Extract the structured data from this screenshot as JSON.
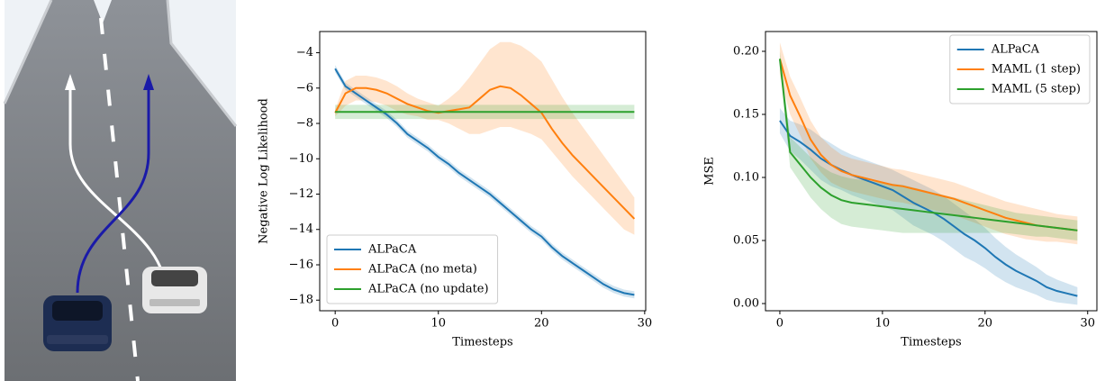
{
  "chart_data": [
    {
      "type": "line",
      "ylabel": "Negative Log Likelihood",
      "xlabel": "Timesteps",
      "x": [
        0,
        1,
        2,
        3,
        4,
        5,
        6,
        7,
        8,
        9,
        10,
        11,
        12,
        13,
        14,
        15,
        16,
        17,
        18,
        19,
        20,
        21,
        22,
        23,
        24,
        25,
        26,
        27,
        28,
        29
      ],
      "xlim": [
        -1.5,
        30.1
      ],
      "xticks": [
        0,
        10,
        20,
        30
      ],
      "ylim": [
        -18.6,
        -2.8
      ],
      "yticks": [
        {
          "value": -18,
          "label": "−18"
        },
        {
          "value": -16,
          "label": "−16"
        },
        {
          "value": -14,
          "label": "−14"
        },
        {
          "value": -12,
          "label": "−12"
        },
        {
          "value": -10,
          "label": "−10"
        },
        {
          "value": -8,
          "label": "−8"
        },
        {
          "value": -6,
          "label": "−6"
        },
        {
          "value": -4,
          "label": "−4"
        }
      ],
      "legend": "lower left",
      "series": [
        {
          "name": "ALPaCA",
          "color": "#1f77b4",
          "values": [
            -4.9,
            -5.9,
            -6.3,
            -6.7,
            -7.1,
            -7.5,
            -8.0,
            -8.6,
            -9.0,
            -9.4,
            -9.9,
            -10.3,
            -10.8,
            -11.2,
            -11.6,
            -12.0,
            -12.5,
            -13.0,
            -13.5,
            -14.0,
            -14.4,
            -15.0,
            -15.5,
            -15.9,
            -16.3,
            -16.7,
            -17.1,
            -17.4,
            -17.6,
            -17.7
          ],
          "upper": [
            -4.7,
            -5.7,
            -6.1,
            -6.5,
            -6.9,
            -7.3,
            -7.8,
            -8.4,
            -8.8,
            -9.2,
            -9.7,
            -10.1,
            -10.6,
            -11.0,
            -11.4,
            -11.8,
            -12.3,
            -12.8,
            -13.3,
            -13.8,
            -14.2,
            -14.8,
            -15.3,
            -15.7,
            -16.1,
            -16.5,
            -16.9,
            -17.2,
            -17.4,
            -17.5
          ],
          "lower": [
            -5.1,
            -6.1,
            -6.5,
            -6.9,
            -7.3,
            -7.7,
            -8.2,
            -8.8,
            -9.2,
            -9.6,
            -10.1,
            -10.5,
            -11.0,
            -11.4,
            -11.8,
            -12.2,
            -12.7,
            -13.2,
            -13.7,
            -14.2,
            -14.6,
            -15.2,
            -15.7,
            -16.1,
            -16.5,
            -16.9,
            -17.3,
            -17.6,
            -17.8,
            -17.9
          ]
        },
        {
          "name": "ALPaCA (no meta)",
          "color": "#ff7f0e",
          "values": [
            -7.4,
            -6.3,
            -6.0,
            -6.0,
            -6.1,
            -6.3,
            -6.6,
            -6.9,
            -7.1,
            -7.3,
            -7.4,
            -7.3,
            -7.2,
            -7.1,
            -6.6,
            -6.1,
            -5.9,
            -6.0,
            -6.4,
            -6.9,
            -7.4,
            -8.3,
            -9.1,
            -9.8,
            -10.4,
            -11.0,
            -11.6,
            -12.2,
            -12.8,
            -13.4
          ],
          "upper": [
            -7.2,
            -5.6,
            -5.3,
            -5.3,
            -5.4,
            -5.6,
            -5.9,
            -6.3,
            -6.6,
            -6.8,
            -7.0,
            -6.6,
            -6.1,
            -5.4,
            -4.6,
            -3.8,
            -3.4,
            -3.4,
            -3.6,
            -4.0,
            -4.5,
            -5.5,
            -6.5,
            -7.4,
            -8.2,
            -9.0,
            -9.8,
            -10.6,
            -11.4,
            -12.2
          ],
          "lower": [
            -7.6,
            -7.0,
            -6.7,
            -6.7,
            -6.8,
            -7.0,
            -7.3,
            -7.5,
            -7.6,
            -7.8,
            -7.8,
            -8.0,
            -8.3,
            -8.6,
            -8.6,
            -8.4,
            -8.2,
            -8.2,
            -8.4,
            -8.6,
            -8.9,
            -9.6,
            -10.3,
            -11.0,
            -11.6,
            -12.2,
            -12.8,
            -13.4,
            -14.0,
            -14.3
          ]
        },
        {
          "name": "ALPaCA (no update)",
          "color": "#2ca02c",
          "values": [
            -7.35,
            -7.35,
            -7.35,
            -7.35,
            -7.35,
            -7.35,
            -7.35,
            -7.35,
            -7.35,
            -7.35,
            -7.35,
            -7.35,
            -7.35,
            -7.35,
            -7.35,
            -7.35,
            -7.35,
            -7.35,
            -7.35,
            -7.35,
            -7.35,
            -7.35,
            -7.35,
            -7.35,
            -7.35,
            -7.35,
            -7.35,
            -7.35,
            -7.35,
            -7.35
          ],
          "upper": [
            -6.95,
            -6.95,
            -6.95,
            -6.95,
            -6.95,
            -6.95,
            -6.95,
            -6.95,
            -6.95,
            -6.95,
            -6.95,
            -6.95,
            -6.95,
            -6.95,
            -6.95,
            -6.95,
            -6.95,
            -6.95,
            -6.95,
            -6.95,
            -6.95,
            -6.95,
            -6.95,
            -6.95,
            -6.95,
            -6.95,
            -6.95,
            -6.95,
            -6.95,
            -6.95
          ],
          "lower": [
            -7.75,
            -7.75,
            -7.75,
            -7.75,
            -7.75,
            -7.75,
            -7.75,
            -7.75,
            -7.75,
            -7.75,
            -7.75,
            -7.75,
            -7.75,
            -7.75,
            -7.75,
            -7.75,
            -7.75,
            -7.75,
            -7.75,
            -7.75,
            -7.75,
            -7.75,
            -7.75,
            -7.75,
            -7.75,
            -7.75,
            -7.75,
            -7.75,
            -7.75,
            -7.75
          ]
        }
      ]
    },
    {
      "type": "line",
      "ylabel": "MSE",
      "xlabel": "Timesteps",
      "x": [
        0,
        1,
        2,
        3,
        4,
        5,
        6,
        7,
        8,
        9,
        10,
        11,
        12,
        13,
        14,
        15,
        16,
        17,
        18,
        19,
        20,
        21,
        22,
        23,
        24,
        25,
        26,
        27,
        28,
        29
      ],
      "xlim": [
        -1.4,
        30.9
      ],
      "xticks": [
        0,
        10,
        20,
        30
      ],
      "ylim": [
        -0.0057,
        0.2157
      ],
      "yticks": [
        {
          "value": 0,
          "label": "0.00"
        },
        {
          "value": 0.05,
          "label": "0.05"
        },
        {
          "value": 0.1,
          "label": "0.10"
        },
        {
          "value": 0.15,
          "label": "0.15"
        },
        {
          "value": 0.2,
          "label": "0.20"
        }
      ],
      "legend": "upper right",
      "series": [
        {
          "name": "ALPaCA",
          "color": "#1f77b4",
          "values": [
            0.145,
            0.133,
            0.128,
            0.122,
            0.115,
            0.11,
            0.106,
            0.102,
            0.099,
            0.096,
            0.093,
            0.09,
            0.085,
            0.08,
            0.076,
            0.072,
            0.067,
            0.061,
            0.055,
            0.05,
            0.044,
            0.037,
            0.031,
            0.026,
            0.022,
            0.018,
            0.013,
            0.01,
            0.008,
            0.006
          ],
          "upper": [
            0.155,
            0.145,
            0.142,
            0.138,
            0.132,
            0.127,
            0.122,
            0.118,
            0.115,
            0.112,
            0.109,
            0.106,
            0.102,
            0.098,
            0.094,
            0.09,
            0.085,
            0.079,
            0.073,
            0.067,
            0.06,
            0.052,
            0.045,
            0.039,
            0.034,
            0.029,
            0.023,
            0.019,
            0.016,
            0.013
          ],
          "lower": [
            0.135,
            0.121,
            0.114,
            0.106,
            0.098,
            0.093,
            0.09,
            0.086,
            0.083,
            0.08,
            0.077,
            0.074,
            0.068,
            0.062,
            0.058,
            0.054,
            0.049,
            0.043,
            0.037,
            0.033,
            0.028,
            0.022,
            0.017,
            0.013,
            0.01,
            0.007,
            0.003,
            0.001,
            0.0,
            -0.001
          ]
        },
        {
          "name": "MAML (1 step)",
          "color": "#ff7f0e",
          "values": [
            0.194,
            0.165,
            0.148,
            0.13,
            0.118,
            0.11,
            0.105,
            0.102,
            0.1,
            0.098,
            0.096,
            0.094,
            0.093,
            0.091,
            0.089,
            0.087,
            0.085,
            0.083,
            0.08,
            0.077,
            0.074,
            0.071,
            0.068,
            0.066,
            0.064,
            0.062,
            0.061,
            0.06,
            0.059,
            0.058
          ],
          "upper": [
            0.207,
            0.18,
            0.163,
            0.145,
            0.132,
            0.124,
            0.118,
            0.115,
            0.113,
            0.111,
            0.109,
            0.107,
            0.106,
            0.104,
            0.102,
            0.1,
            0.098,
            0.096,
            0.093,
            0.09,
            0.087,
            0.084,
            0.081,
            0.079,
            0.077,
            0.075,
            0.073,
            0.071,
            0.07,
            0.069
          ],
          "lower": [
            0.181,
            0.15,
            0.133,
            0.115,
            0.104,
            0.096,
            0.092,
            0.089,
            0.087,
            0.085,
            0.083,
            0.081,
            0.08,
            0.078,
            0.076,
            0.074,
            0.072,
            0.07,
            0.067,
            0.064,
            0.061,
            0.058,
            0.055,
            0.053,
            0.051,
            0.05,
            0.049,
            0.049,
            0.048,
            0.047
          ]
        },
        {
          "name": "MAML (5 step)",
          "color": "#2ca02c",
          "values": [
            0.194,
            0.12,
            0.11,
            0.1,
            0.092,
            0.086,
            0.082,
            0.08,
            0.079,
            0.078,
            0.077,
            0.076,
            0.075,
            0.074,
            0.073,
            0.072,
            0.071,
            0.07,
            0.069,
            0.068,
            0.067,
            0.066,
            0.065,
            0.064,
            0.063,
            0.062,
            0.061,
            0.06,
            0.059,
            0.058
          ],
          "upper": [
            0.2,
            0.132,
            0.124,
            0.116,
            0.109,
            0.104,
            0.101,
            0.099,
            0.098,
            0.097,
            0.096,
            0.095,
            0.094,
            0.092,
            0.09,
            0.088,
            0.086,
            0.084,
            0.082,
            0.08,
            0.078,
            0.076,
            0.074,
            0.072,
            0.071,
            0.07,
            0.069,
            0.068,
            0.067,
            0.066
          ],
          "lower": [
            0.188,
            0.108,
            0.096,
            0.084,
            0.075,
            0.068,
            0.063,
            0.061,
            0.06,
            0.059,
            0.058,
            0.057,
            0.056,
            0.056,
            0.056,
            0.056,
            0.056,
            0.056,
            0.056,
            0.056,
            0.056,
            0.056,
            0.056,
            0.055,
            0.054,
            0.053,
            0.053,
            0.052,
            0.051,
            0.05
          ]
        }
      ]
    }
  ]
}
